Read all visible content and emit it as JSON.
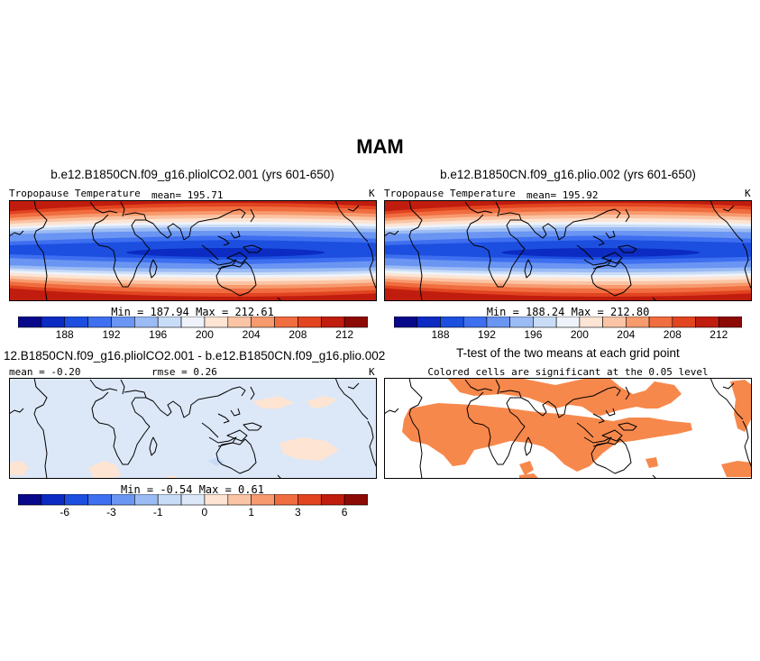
{
  "main_title": "MAM",
  "colors": {
    "temp_levels": [
      "#08088a",
      "#0b2bc2",
      "#1c4fe0",
      "#3e6ff0",
      "#6a95f2",
      "#9bbbf4",
      "#c9dcf7",
      "#eef3fb",
      "#fde4d3",
      "#fbc4a4",
      "#f79a6e",
      "#f06d40",
      "#e24420",
      "#c01d0f",
      "#8c0a06"
    ],
    "diff_levels": [
      "#08088a",
      "#0b2bc2",
      "#1c4fe0",
      "#3e6ff0",
      "#6a95f2",
      "#9bbbf4",
      "#c9dcf7",
      "#dce8f8",
      "#fde4d3",
      "#fbc4a4",
      "#f79a6e",
      "#f06d40",
      "#e24420",
      "#c01d0f",
      "#8c0a06"
    ],
    "significant": "#f7884c",
    "diff_background": "#dce8f8"
  },
  "chart_data": [
    {
      "type": "heatmap",
      "id": "panel1",
      "title": "b.e12.B1850CN.f09_g16.pliolCO2.001 (yrs 601-650)",
      "left_label": "Tropopause Temperature",
      "mean_label": "mean= 195.71",
      "units": "K",
      "stats": "Min = 187.94 Max = 212.61",
      "colorbar_ticks": [
        "188",
        "192",
        "196",
        "200",
        "204",
        "208",
        "212"
      ],
      "min": 187.94,
      "max": 212.61
    },
    {
      "type": "heatmap",
      "id": "panel2",
      "title": "b.e12.B1850CN.f09_g16.plio.002 (yrs 601-650)",
      "left_label": "Tropopause Temperature",
      "mean_label": "mean= 195.92",
      "units": "K",
      "stats": "Min = 188.24 Max = 212.80",
      "colorbar_ticks": [
        "188",
        "192",
        "196",
        "200",
        "204",
        "208",
        "212"
      ],
      "min": 188.24,
      "max": 212.8
    },
    {
      "type": "heatmap",
      "id": "panel3",
      "title": "12.B1850CN.f09_g16.pliolCO2.001 - b.e12.B1850CN.f09_g16.plio.002",
      "mean_label": "mean = -0.20",
      "rmse_label": "rmse = 0.26",
      "units": "K",
      "stats": "Min = -0.54 Max = 0.61",
      "colorbar_ticks": [
        "-6",
        "-3",
        "-1",
        "0",
        "1",
        "3",
        "6"
      ],
      "min": -0.54,
      "max": 0.61
    },
    {
      "type": "heatmap",
      "id": "panel4",
      "title": "T-test of the two means at each grid point",
      "subtitle": "Colored cells are significant at the 0.05 level"
    }
  ]
}
